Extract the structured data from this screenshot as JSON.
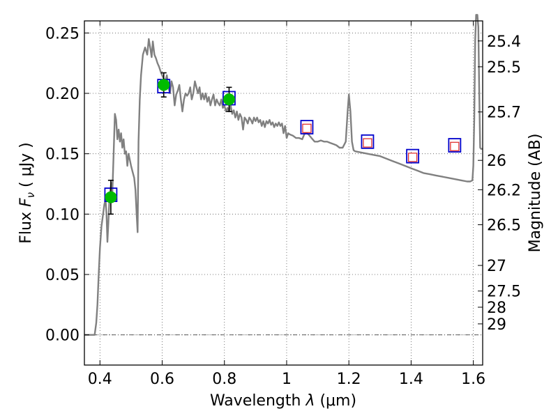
{
  "chart_data": {
    "type": "line",
    "xlabel_prefix": "Wavelength  ",
    "xlabel_symbol": "λ",
    "xlabel_unit": " (μm)",
    "ylabel_prefix": "Flux  ",
    "ylabel_symbol": "F",
    "ylabel_subscript": "ν",
    "ylabel_unit": "  ( μJy )",
    "y2label": "Magnitude (AB)",
    "xlim": [
      0.35,
      1.63
    ],
    "ylim": [
      -0.025,
      0.26
    ],
    "grid": true,
    "x_ticks": [
      {
        "value": 0.4,
        "label": "0.4"
      },
      {
        "value": 0.6,
        "label": "0.6"
      },
      {
        "value": 0.8,
        "label": "0.8"
      },
      {
        "value": 1.0,
        "label": "1"
      },
      {
        "value": 1.2,
        "label": "1.2"
      },
      {
        "value": 1.4,
        "label": "1.4"
      },
      {
        "value": 1.6,
        "label": "1.6"
      }
    ],
    "y_ticks": [
      {
        "value": 0.0,
        "label": "0.00"
      },
      {
        "value": 0.05,
        "label": "0.05"
      },
      {
        "value": 0.1,
        "label": "0.10"
      },
      {
        "value": 0.15,
        "label": "0.15"
      },
      {
        "value": 0.2,
        "label": "0.20"
      },
      {
        "value": 0.25,
        "label": "0.25"
      }
    ],
    "mag_ticks": [
      {
        "label": "25.4",
        "flux": 0.2434
      },
      {
        "label": "25.5",
        "flux": 0.222
      },
      {
        "label": "25.7",
        "flux": 0.1846
      },
      {
        "label": "26",
        "flux": 0.1445
      },
      {
        "label": "26.2",
        "flux": 0.1202
      },
      {
        "label": "26.5",
        "flux": 0.0912
      },
      {
        "label": "27",
        "flux": 0.0575
      },
      {
        "label": "27.5",
        "flux": 0.0363
      },
      {
        "label": "28",
        "flux": 0.0229
      },
      {
        "label": "29",
        "flux": 0.0091
      }
    ],
    "zero_line": 0,
    "colors": {
      "spectrum": "#808080",
      "photometry": "#00bb00",
      "model_box": "#0000cc",
      "model_inner": "#dd2222",
      "errorbar": "#000000",
      "grid": "#555555"
    },
    "series": [
      {
        "kind": "spectrum",
        "points": [
          [
            0.35,
            0.0
          ],
          [
            0.37,
            0.0
          ],
          [
            0.383,
            0.0
          ],
          [
            0.388,
            0.01
          ],
          [
            0.392,
            0.025
          ],
          [
            0.396,
            0.05
          ],
          [
            0.4,
            0.072
          ],
          [
            0.405,
            0.09
          ],
          [
            0.41,
            0.1
          ],
          [
            0.414,
            0.108
          ],
          [
            0.418,
            0.112
          ],
          [
            0.421,
            0.1
          ],
          [
            0.424,
            0.077
          ],
          [
            0.427,
            0.092
          ],
          [
            0.431,
            0.115
          ],
          [
            0.436,
            0.126
          ],
          [
            0.44,
            0.118
          ],
          [
            0.444,
            0.15
          ],
          [
            0.448,
            0.183
          ],
          [
            0.452,
            0.178
          ],
          [
            0.456,
            0.162
          ],
          [
            0.46,
            0.17
          ],
          [
            0.464,
            0.16
          ],
          [
            0.468,
            0.167
          ],
          [
            0.472,
            0.155
          ],
          [
            0.476,
            0.162
          ],
          [
            0.48,
            0.15
          ],
          [
            0.484,
            0.152
          ],
          [
            0.488,
            0.14
          ],
          [
            0.492,
            0.15
          ],
          [
            0.496,
            0.145
          ],
          [
            0.5,
            0.14
          ],
          [
            0.505,
            0.135
          ],
          [
            0.51,
            0.13
          ],
          [
            0.514,
            0.12
          ],
          [
            0.518,
            0.1
          ],
          [
            0.521,
            0.085
          ],
          [
            0.524,
            0.16
          ],
          [
            0.528,
            0.195
          ],
          [
            0.532,
            0.215
          ],
          [
            0.538,
            0.232
          ],
          [
            0.545,
            0.238
          ],
          [
            0.552,
            0.232
          ],
          [
            0.557,
            0.245
          ],
          [
            0.562,
            0.237
          ],
          [
            0.566,
            0.23
          ],
          [
            0.57,
            0.243
          ],
          [
            0.575,
            0.232
          ],
          [
            0.58,
            0.229
          ],
          [
            0.585,
            0.225
          ],
          [
            0.59,
            0.222
          ],
          [
            0.595,
            0.218
          ],
          [
            0.6,
            0.215
          ],
          [
            0.605,
            0.212
          ],
          [
            0.61,
            0.21
          ],
          [
            0.615,
            0.215
          ],
          [
            0.62,
            0.205
          ],
          [
            0.625,
            0.2
          ],
          [
            0.63,
            0.21
          ],
          [
            0.635,
            0.205
          ],
          [
            0.64,
            0.19
          ],
          [
            0.645,
            0.199
          ],
          [
            0.65,
            0.202
          ],
          [
            0.655,
            0.207
          ],
          [
            0.66,
            0.195
          ],
          [
            0.665,
            0.185
          ],
          [
            0.67,
            0.195
          ],
          [
            0.675,
            0.2
          ],
          [
            0.68,
            0.198
          ],
          [
            0.685,
            0.2
          ],
          [
            0.69,
            0.205
          ],
          [
            0.695,
            0.195
          ],
          [
            0.7,
            0.2
          ],
          [
            0.705,
            0.21
          ],
          [
            0.71,
            0.205
          ],
          [
            0.715,
            0.2
          ],
          [
            0.72,
            0.205
          ],
          [
            0.725,
            0.195
          ],
          [
            0.73,
            0.2
          ],
          [
            0.735,
            0.195
          ],
          [
            0.74,
            0.2
          ],
          [
            0.745,
            0.193
          ],
          [
            0.75,
            0.197
          ],
          [
            0.755,
            0.19
          ],
          [
            0.76,
            0.195
          ],
          [
            0.765,
            0.199
          ],
          [
            0.77,
            0.19
          ],
          [
            0.775,
            0.195
          ],
          [
            0.78,
            0.192
          ],
          [
            0.785,
            0.19
          ],
          [
            0.79,
            0.195
          ],
          [
            0.795,
            0.188
          ],
          [
            0.8,
            0.19
          ],
          [
            0.805,
            0.185
          ],
          [
            0.81,
            0.188
          ],
          [
            0.815,
            0.185
          ],
          [
            0.82,
            0.19
          ],
          [
            0.825,
            0.183
          ],
          [
            0.83,
            0.186
          ],
          [
            0.835,
            0.18
          ],
          [
            0.84,
            0.185
          ],
          [
            0.845,
            0.178
          ],
          [
            0.85,
            0.183
          ],
          [
            0.855,
            0.18
          ],
          [
            0.86,
            0.17
          ],
          [
            0.865,
            0.18
          ],
          [
            0.87,
            0.178
          ],
          [
            0.875,
            0.175
          ],
          [
            0.88,
            0.18
          ],
          [
            0.885,
            0.178
          ],
          [
            0.89,
            0.175
          ],
          [
            0.895,
            0.18
          ],
          [
            0.9,
            0.177
          ],
          [
            0.905,
            0.18
          ],
          [
            0.91,
            0.176
          ],
          [
            0.915,
            0.178
          ],
          [
            0.92,
            0.173
          ],
          [
            0.925,
            0.177
          ],
          [
            0.93,
            0.172
          ],
          [
            0.935,
            0.177
          ],
          [
            0.94,
            0.175
          ],
          [
            0.945,
            0.178
          ],
          [
            0.95,
            0.174
          ],
          [
            0.955,
            0.176
          ],
          [
            0.96,
            0.172
          ],
          [
            0.965,
            0.175
          ],
          [
            0.97,
            0.173
          ],
          [
            0.975,
            0.176
          ],
          [
            0.98,
            0.173
          ],
          [
            0.985,
            0.175
          ],
          [
            0.99,
            0.167
          ],
          [
            0.995,
            0.173
          ],
          [
            1.0,
            0.163
          ],
          [
            1.005,
            0.167
          ],
          [
            1.01,
            0.166
          ],
          [
            1.02,
            0.165
          ],
          [
            1.03,
            0.163
          ],
          [
            1.04,
            0.163
          ],
          [
            1.05,
            0.162
          ],
          [
            1.06,
            0.168
          ],
          [
            1.07,
            0.166
          ],
          [
            1.08,
            0.163
          ],
          [
            1.09,
            0.16
          ],
          [
            1.1,
            0.16
          ],
          [
            1.11,
            0.161
          ],
          [
            1.12,
            0.16
          ],
          [
            1.13,
            0.16
          ],
          [
            1.14,
            0.159
          ],
          [
            1.15,
            0.158
          ],
          [
            1.16,
            0.157
          ],
          [
            1.17,
            0.155
          ],
          [
            1.18,
            0.155
          ],
          [
            1.19,
            0.16
          ],
          [
            1.196,
            0.185
          ],
          [
            1.2,
            0.199
          ],
          [
            1.205,
            0.185
          ],
          [
            1.21,
            0.16
          ],
          [
            1.215,
            0.153
          ],
          [
            1.22,
            0.152
          ],
          [
            1.24,
            0.151
          ],
          [
            1.26,
            0.15
          ],
          [
            1.28,
            0.149
          ],
          [
            1.3,
            0.148
          ],
          [
            1.32,
            0.146
          ],
          [
            1.34,
            0.144
          ],
          [
            1.36,
            0.142
          ],
          [
            1.38,
            0.14
          ],
          [
            1.4,
            0.138
          ],
          [
            1.42,
            0.136
          ],
          [
            1.44,
            0.134
          ],
          [
            1.46,
            0.133
          ],
          [
            1.48,
            0.132
          ],
          [
            1.5,
            0.131
          ],
          [
            1.52,
            0.13
          ],
          [
            1.54,
            0.129
          ],
          [
            1.56,
            0.128
          ],
          [
            1.58,
            0.127
          ],
          [
            1.59,
            0.127
          ],
          [
            1.597,
            0.128
          ],
          [
            1.6,
            0.14
          ],
          [
            1.603,
            0.18
          ],
          [
            1.606,
            0.245
          ],
          [
            1.609,
            0.265
          ],
          [
            1.613,
            0.265
          ],
          [
            1.616,
            0.255
          ],
          [
            1.619,
            0.2
          ],
          [
            1.622,
            0.155
          ],
          [
            1.625,
            0.154
          ],
          [
            1.63,
            0.154
          ]
        ]
      },
      {
        "kind": "model_boxes",
        "points": [
          [
            0.435,
            0.116
          ],
          [
            0.605,
            0.206
          ],
          [
            0.815,
            0.196
          ],
          [
            1.065,
            0.172
          ],
          [
            1.26,
            0.16
          ],
          [
            1.405,
            0.148
          ],
          [
            1.54,
            0.157
          ]
        ]
      },
      {
        "kind": "model_inner",
        "points": [
          [
            1.065,
            0.171
          ],
          [
            1.26,
            0.159
          ],
          [
            1.405,
            0.147
          ],
          [
            1.54,
            0.156
          ]
        ]
      },
      {
        "kind": "photometry",
        "points": [
          {
            "x": 0.435,
            "y": 0.114,
            "err": 0.014
          },
          {
            "x": 0.605,
            "y": 0.207,
            "err": 0.01
          },
          {
            "x": 0.815,
            "y": 0.195,
            "err": 0.01
          }
        ]
      }
    ]
  }
}
